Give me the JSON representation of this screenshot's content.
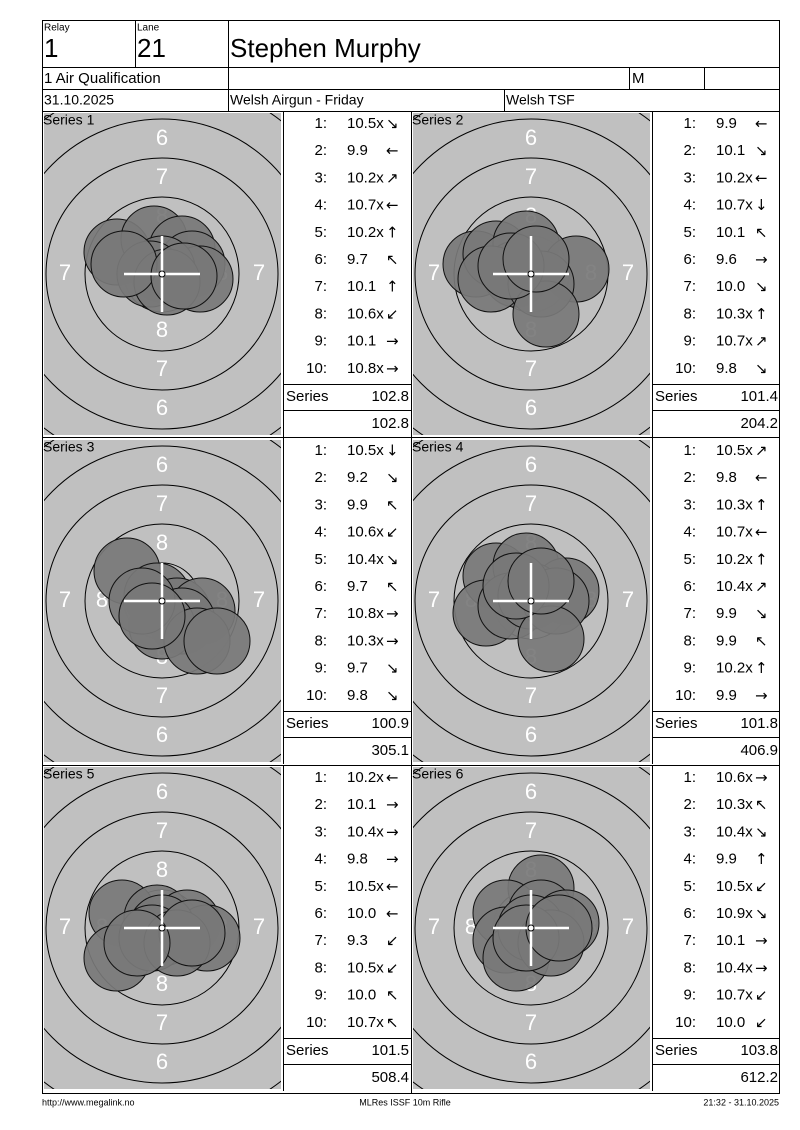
{
  "header": {
    "relay_label": "Relay",
    "relay": "1",
    "lane_label": "Lane",
    "lane": "21",
    "name": "Stephen Murphy",
    "event": "1 Air Qualification",
    "class": "M",
    "date": "31.10.2025",
    "club": "Welsh Airgun - Friday",
    "team": "Welsh TSF"
  },
  "target": {
    "ring_labels": [
      "6",
      "7",
      "8"
    ]
  },
  "series_row_label": "Series",
  "series": [
    {
      "title": "Series 1",
      "total": "102.8",
      "cumulative": "102.8",
      "shots": [
        {
          "n": "1:",
          "score": "10.5x",
          "dir": "↘"
        },
        {
          "n": "2:",
          "score": "9.9",
          "dir": "←"
        },
        {
          "n": "3:",
          "score": "10.2x",
          "dir": "↗"
        },
        {
          "n": "4:",
          "score": "10.7x",
          "dir": "←"
        },
        {
          "n": "5:",
          "score": "10.2x",
          "dir": "↑"
        },
        {
          "n": "6:",
          "score": "9.7",
          "dir": "↖"
        },
        {
          "n": "7:",
          "score": "10.1",
          "dir": "↑"
        },
        {
          "n": "8:",
          "score": "10.6x",
          "dir": "↙"
        },
        {
          "n": "9:",
          "score": "10.1",
          "dir": "→"
        },
        {
          "n": "10:",
          "score": "10.8x",
          "dir": "→"
        }
      ]
    },
    {
      "title": "Series 2",
      "total": "101.4",
      "cumulative": "204.2",
      "shots": [
        {
          "n": "1:",
          "score": "9.9",
          "dir": "←"
        },
        {
          "n": "2:",
          "score": "10.1",
          "dir": "↘"
        },
        {
          "n": "3:",
          "score": "10.2x",
          "dir": "←"
        },
        {
          "n": "4:",
          "score": "10.7x",
          "dir": "↓"
        },
        {
          "n": "5:",
          "score": "10.1",
          "dir": "↖"
        },
        {
          "n": "6:",
          "score": "9.6",
          "dir": "→"
        },
        {
          "n": "7:",
          "score": "10.0",
          "dir": "↘"
        },
        {
          "n": "8:",
          "score": "10.3x",
          "dir": "↑"
        },
        {
          "n": "9:",
          "score": "10.7x",
          "dir": "↗"
        },
        {
          "n": "10:",
          "score": "9.8",
          "dir": "↘"
        }
      ]
    },
    {
      "title": "Series 3",
      "total": "100.9",
      "cumulative": "305.1",
      "shots": [
        {
          "n": "1:",
          "score": "10.5x",
          "dir": "↓"
        },
        {
          "n": "2:",
          "score": "9.2",
          "dir": "↘"
        },
        {
          "n": "3:",
          "score": "9.9",
          "dir": "↖"
        },
        {
          "n": "4:",
          "score": "10.6x",
          "dir": "↙"
        },
        {
          "n": "5:",
          "score": "10.4x",
          "dir": "↘"
        },
        {
          "n": "6:",
          "score": "9.7",
          "dir": "↖"
        },
        {
          "n": "7:",
          "score": "10.8x",
          "dir": "→"
        },
        {
          "n": "8:",
          "score": "10.3x",
          "dir": "→"
        },
        {
          "n": "9:",
          "score": "9.7",
          "dir": "↘"
        },
        {
          "n": "10:",
          "score": "9.8",
          "dir": "↘"
        }
      ]
    },
    {
      "title": "Series 4",
      "total": "101.8",
      "cumulative": "406.9",
      "shots": [
        {
          "n": "1:",
          "score": "10.5x",
          "dir": "↗"
        },
        {
          "n": "2:",
          "score": "9.8",
          "dir": "←"
        },
        {
          "n": "3:",
          "score": "10.3x",
          "dir": "↑"
        },
        {
          "n": "4:",
          "score": "10.7x",
          "dir": "←"
        },
        {
          "n": "5:",
          "score": "10.2x",
          "dir": "↑"
        },
        {
          "n": "6:",
          "score": "10.4x",
          "dir": "↗"
        },
        {
          "n": "7:",
          "score": "9.9",
          "dir": "↘"
        },
        {
          "n": "8:",
          "score": "9.9",
          "dir": "↖"
        },
        {
          "n": "9:",
          "score": "10.2x",
          "dir": "↑"
        },
        {
          "n": "10:",
          "score": "9.9",
          "dir": "→"
        }
      ]
    },
    {
      "title": "Series 5",
      "total": "101.5",
      "cumulative": "508.4",
      "shots": [
        {
          "n": "1:",
          "score": "10.2x",
          "dir": "←"
        },
        {
          "n": "2:",
          "score": "10.1",
          "dir": "→"
        },
        {
          "n": "3:",
          "score": "10.4x",
          "dir": "→"
        },
        {
          "n": "4:",
          "score": "9.8",
          "dir": "→"
        },
        {
          "n": "5:",
          "score": "10.5x",
          "dir": "←"
        },
        {
          "n": "6:",
          "score": "10.0",
          "dir": "←"
        },
        {
          "n": "7:",
          "score": "9.3",
          "dir": "↙"
        },
        {
          "n": "8:",
          "score": "10.5x",
          "dir": "↙"
        },
        {
          "n": "9:",
          "score": "10.0",
          "dir": "↖"
        },
        {
          "n": "10:",
          "score": "10.7x",
          "dir": "↖"
        }
      ]
    },
    {
      "title": "Series 6",
      "total": "103.8",
      "cumulative": "612.2",
      "shots": [
        {
          "n": "1:",
          "score": "10.6x",
          "dir": "→"
        },
        {
          "n": "2:",
          "score": "10.3x",
          "dir": "↖"
        },
        {
          "n": "3:",
          "score": "10.4x",
          "dir": "↘"
        },
        {
          "n": "4:",
          "score": "9.9",
          "dir": "↑"
        },
        {
          "n": "5:",
          "score": "10.5x",
          "dir": "↙"
        },
        {
          "n": "6:",
          "score": "10.9x",
          "dir": "↘"
        },
        {
          "n": "7:",
          "score": "10.1",
          "dir": "→"
        },
        {
          "n": "8:",
          "score": "10.4x",
          "dir": "→"
        },
        {
          "n": "9:",
          "score": "10.7x",
          "dir": "↙"
        },
        {
          "n": "10:",
          "score": "10.0",
          "dir": "↙"
        }
      ]
    }
  ],
  "footer": {
    "url": "http://www.megalink.no",
    "software": "MLRes ISSF 10m Rifle",
    "timestamp": "21:32 - 31.10.2025"
  }
}
